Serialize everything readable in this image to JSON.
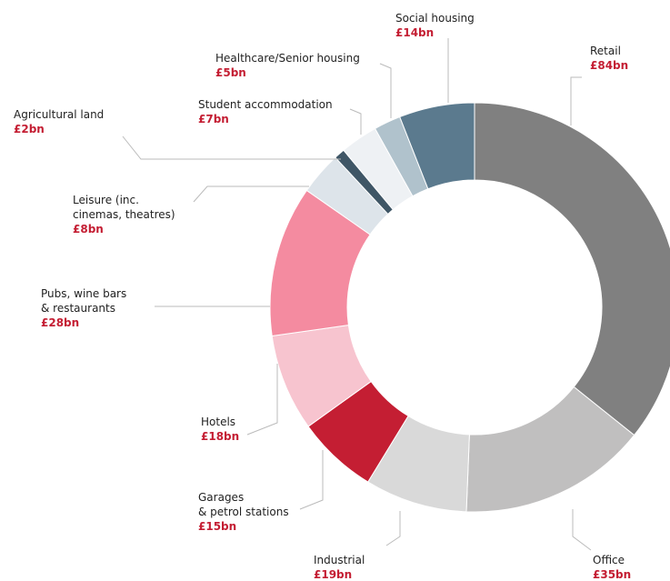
{
  "chart_data": {
    "type": "donut",
    "categories": [
      "Retail",
      "Office",
      "Industrial",
      "Garages\n& petrol stations",
      "Hotels",
      "Pubs, wine bars\n& restaurants",
      "Leisure (inc.\ncinemas, theatres)",
      "Agricultural land",
      "Student accommodation",
      "Healthcare/Senior housing",
      "Social housing"
    ],
    "values": [
      84,
      35,
      19,
      15,
      18,
      28,
      8,
      2,
      7,
      5,
      14
    ],
    "value_labels": [
      "£84bn",
      "£35bn",
      "£19bn",
      "£15bn",
      "£18bn",
      "£28bn",
      "£8bn",
      "£2bn",
      "£7bn",
      "£5bn",
      "£14bn"
    ],
    "colors": [
      "#808080",
      "#c0bfbf",
      "#d9d9d9",
      "#c41e33",
      "#f7c4cf",
      "#f48ba0",
      "#dde4ea",
      "#3f5666",
      "#eef1f4",
      "#b0c2cc",
      "#5b7a8e"
    ]
  }
}
